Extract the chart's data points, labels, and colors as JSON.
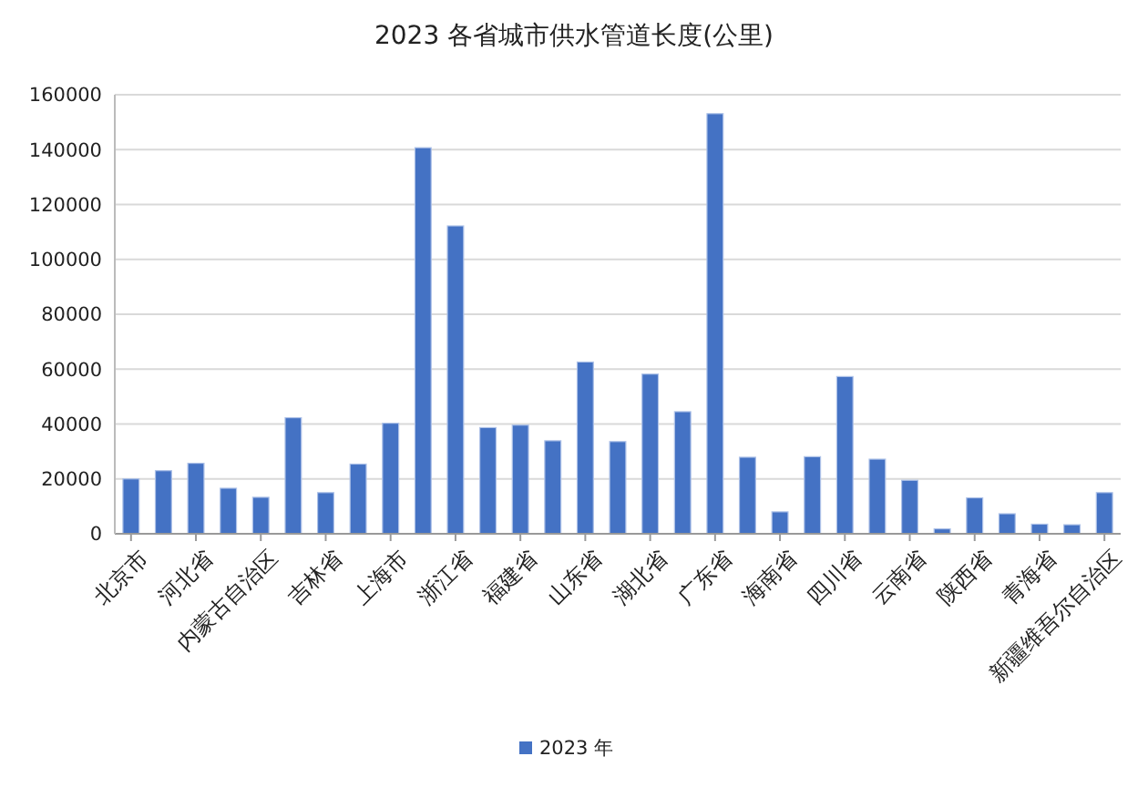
{
  "chart_data": {
    "type": "bar",
    "title": "2023 各省城市供水管道长度(公里)",
    "categories": [
      "北京市",
      null,
      "河北省",
      null,
      "内蒙古自治区",
      null,
      "吉林省",
      null,
      "上海市",
      null,
      "浙江省",
      null,
      "福建省",
      null,
      "山东省",
      null,
      "湖北省",
      null,
      "广东省",
      null,
      "海南省",
      null,
      "四川省",
      null,
      "云南省",
      null,
      "陕西省",
      null,
      "青海省",
      null,
      "新疆维吾尔自治区"
    ],
    "series": [
      {
        "name": "2023 年",
        "color": "#4472c4",
        "values": [
          20000,
          23000,
          25700,
          16600,
          13300,
          42300,
          15000,
          25400,
          40300,
          140700,
          112200,
          38700,
          39600,
          33900,
          62600,
          33600,
          58200,
          44500,
          153100,
          27900,
          8000,
          28100,
          57300,
          27200,
          19500,
          1800,
          13100,
          7300,
          3500,
          3300,
          15000
        ]
      }
    ],
    "ylim": [
      0,
      160000
    ],
    "yticks": [
      0,
      20000,
      40000,
      60000,
      80000,
      100000,
      120000,
      140000,
      160000
    ],
    "grid": "y",
    "legend": "bottom"
  }
}
